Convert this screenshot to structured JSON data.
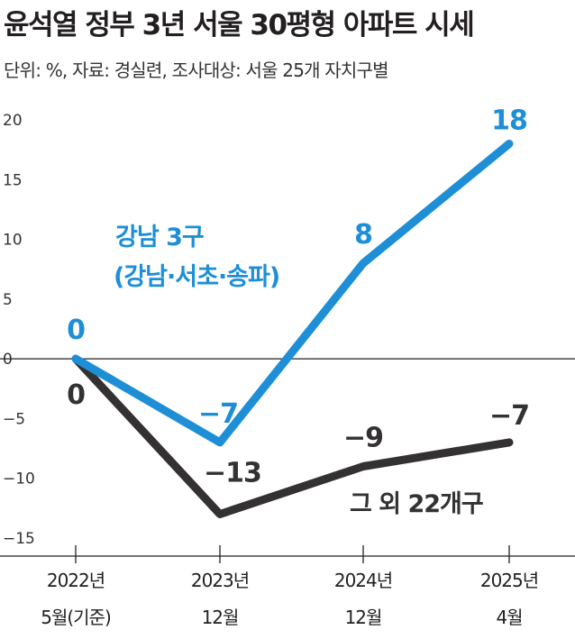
{
  "header": {
    "title": "윤석열 정부 3년 서울 30평형 아파트 시세",
    "subtitle": "단위: %, 자료: 경실련, 조사대상: 서울 25개 자치구별"
  },
  "chart_data": {
    "type": "line",
    "categories": [
      [
        "2022년",
        "5월(기준)"
      ],
      [
        "2023년",
        "12월"
      ],
      [
        "2024년",
        "12월"
      ],
      [
        "2025년",
        "4월"
      ]
    ],
    "ylim": [
      -15,
      20
    ],
    "yticks": [
      20,
      15,
      10,
      5,
      0,
      -5,
      -10,
      -15
    ],
    "ytick_labels": [
      "20",
      "15",
      "10",
      "5",
      "0",
      "−5",
      "−10",
      "−15"
    ],
    "series": [
      {
        "name_lines": [
          "강남 3구",
          "(강남·서초·송파)"
        ],
        "values": [
          0,
          -7,
          8,
          18
        ],
        "labels": [
          "0",
          "−7",
          "8",
          "18"
        ],
        "color": "#1e8fd6"
      },
      {
        "name_lines": [
          "그 외 22개구"
        ],
        "values": [
          0,
          -13,
          -9,
          -7
        ],
        "labels": [
          "0",
          "−13",
          "−9",
          "−7"
        ],
        "color": "#333132"
      }
    ],
    "grid": false,
    "zero_line": true
  }
}
